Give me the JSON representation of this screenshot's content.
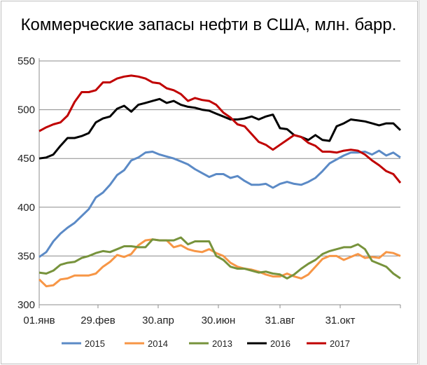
{
  "chart_data": {
    "type": "line",
    "title": "Коммерческие запасы нефти в США, млн. барр.",
    "xlabel": "",
    "ylabel": "",
    "ylim": [
      300,
      550
    ],
    "yticks": [
      300,
      350,
      400,
      450,
      500,
      550
    ],
    "x_week_count": 52,
    "xticks": [
      {
        "label": "01.янв",
        "week": 0
      },
      {
        "label": "29.фев",
        "week": 8.3
      },
      {
        "label": "30.апр",
        "week": 16.8
      },
      {
        "label": "30.июн",
        "week": 25.3
      },
      {
        "label": "31.авг",
        "week": 34.0
      },
      {
        "label": "31.окт",
        "week": 42.5
      }
    ],
    "grid": "horizontal",
    "legend_position": "bottom",
    "series": [
      {
        "name": "2015",
        "color": "#5b8ac6",
        "values": [
          349,
          354,
          365,
          373,
          379,
          384,
          391,
          398,
          410,
          415,
          423,
          433,
          438,
          448,
          451,
          456,
          457,
          454,
          452,
          450,
          447,
          444,
          439,
          435,
          431,
          434,
          434,
          430,
          432,
          427,
          423,
          423,
          424,
          420,
          424,
          426,
          424,
          423,
          426,
          430,
          437,
          445,
          449,
          453,
          456,
          456,
          457,
          454,
          458,
          453,
          456,
          451
        ]
      },
      {
        "name": "2014",
        "color": "#f79646",
        "values": [
          326,
          319,
          320,
          326,
          327,
          330,
          330,
          330,
          332,
          339,
          344,
          351,
          349,
          352,
          361,
          366,
          367,
          366,
          366,
          359,
          361,
          357,
          355,
          354,
          357,
          353,
          350,
          343,
          339,
          337,
          336,
          334,
          331,
          329,
          329,
          332,
          329,
          327,
          331,
          339,
          347,
          350,
          350,
          346,
          349,
          352,
          348,
          349,
          348,
          354,
          353,
          350
        ]
      },
      {
        "name": "2013",
        "color": "#77933c",
        "values": [
          333,
          332,
          335,
          341,
          343,
          344,
          348,
          350,
          353,
          355,
          354,
          357,
          360,
          360,
          359,
          359,
          367,
          366,
          366,
          366,
          369,
          362,
          365,
          365,
          365,
          350,
          346,
          339,
          337,
          337,
          335,
          333,
          334,
          332,
          331,
          327,
          331,
          337,
          342,
          346,
          352,
          355,
          357,
          359,
          359,
          362,
          357,
          345,
          342,
          339,
          332,
          327
        ]
      },
      {
        "name": "2016",
        "color": "#000000",
        "values": [
          450,
          451,
          454,
          463,
          471,
          471,
          473,
          476,
          487,
          491,
          493,
          501,
          504,
          498,
          505,
          507,
          509,
          511,
          507,
          509,
          505,
          503,
          502,
          500,
          499,
          496,
          493,
          490,
          490,
          491,
          493,
          490,
          493,
          495,
          481,
          480,
          474,
          472,
          469,
          474,
          469,
          468,
          483,
          486,
          490,
          489,
          488,
          486,
          484,
          486,
          486,
          479
        ]
      },
      {
        "name": "2017",
        "color": "#c00000",
        "values": [
          478,
          482,
          485,
          487,
          494,
          508,
          518,
          518,
          520,
          528,
          528,
          532,
          534,
          535,
          534,
          532,
          528,
          527,
          522,
          520,
          516,
          509,
          512,
          510,
          509,
          505,
          497,
          492,
          485,
          483,
          475,
          467,
          464,
          459,
          464,
          469,
          474,
          472,
          466,
          463,
          457,
          457,
          456,
          458,
          459,
          458,
          454,
          448,
          443,
          437,
          434,
          425
        ]
      }
    ]
  }
}
